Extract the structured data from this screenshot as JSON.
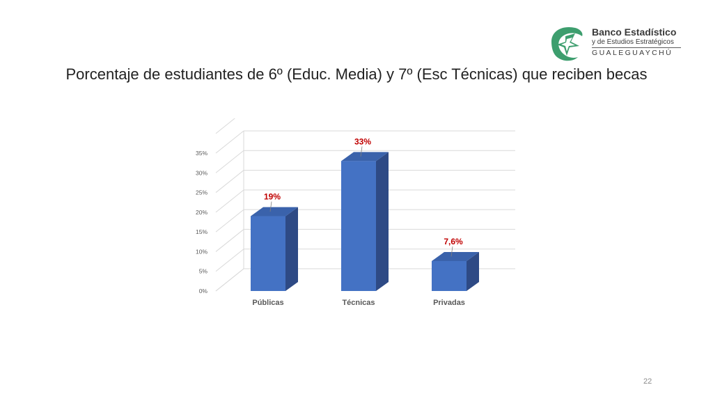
{
  "slide": {
    "title": "Porcentaje de estudiantes de 6º (Educ. Media) y 7º (Esc Técnicas) que reciben becas",
    "page_number": "22"
  },
  "logo": {
    "line1": "Banco Estadístico",
    "line2": "y de Estudios Estratégicos",
    "line3": "GUALEGUAYCHÚ",
    "icon": "bird-leaf-logo-icon",
    "color": "#3d9e6e"
  },
  "chart_data": {
    "type": "bar",
    "style": "3d-column",
    "title": "",
    "xlabel": "",
    "ylabel": "",
    "categories": [
      "Públicas",
      "Técnicas",
      "Privadas"
    ],
    "values": [
      19,
      33,
      7.6
    ],
    "data_labels": [
      "19%",
      "33%",
      "7,6%"
    ],
    "ylim": [
      0,
      35
    ],
    "yticks": [
      0,
      5,
      10,
      15,
      20,
      25,
      30,
      35
    ],
    "ytick_labels": [
      "0%",
      "5%",
      "10%",
      "15%",
      "20%",
      "25%",
      "30%",
      "35%"
    ],
    "grid": true,
    "legend": "none",
    "colors": {
      "bar_front": "#4472c4",
      "bar_side": "#2e4a85",
      "bar_top": "#3a62ab",
      "data_label": "#c00000",
      "grid": "#d9d9d9",
      "tick_label": "#595959"
    }
  }
}
